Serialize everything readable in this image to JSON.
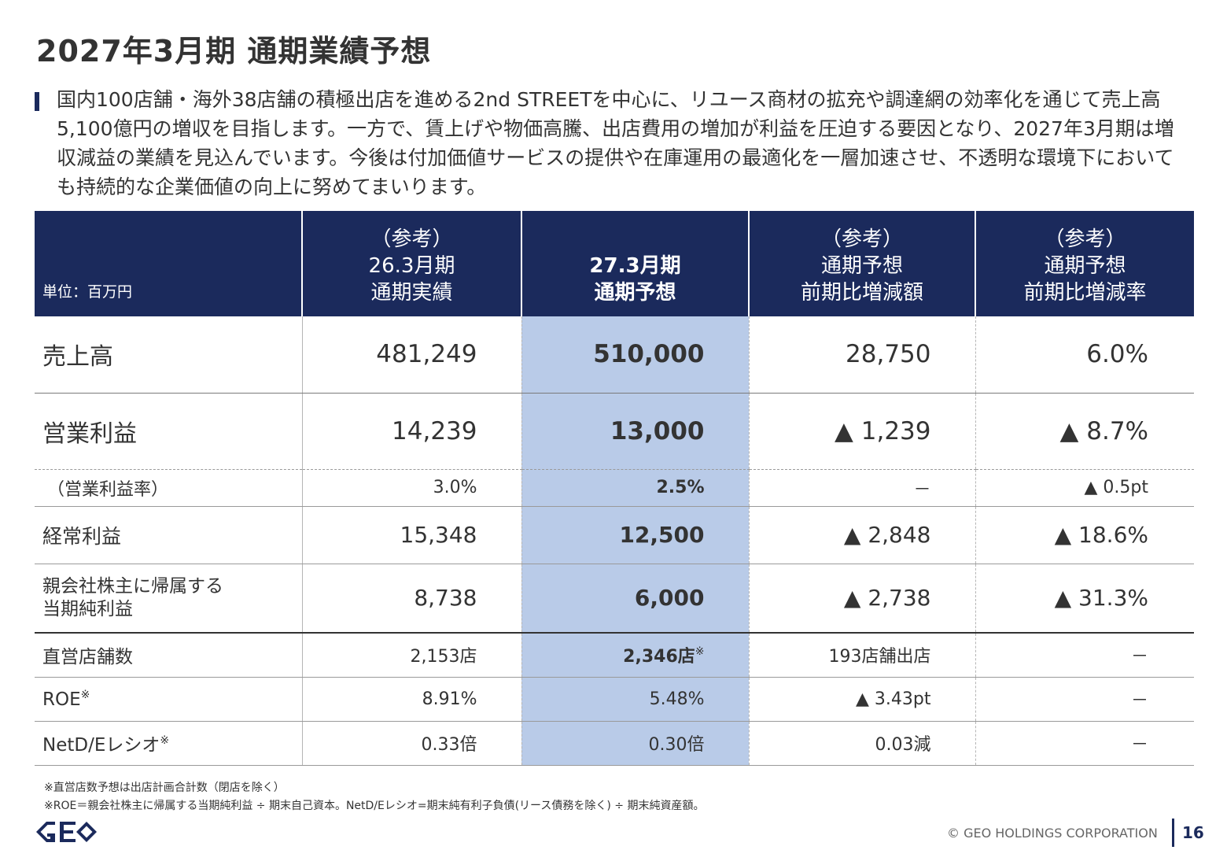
{
  "title": "2027年3月期 通期業績予想",
  "lead": "国内100店舗・海外38店舗の積極出店を進める2nd STREETを中心に、リユース商材の拡充や調達網の効率化を通じて売上高5,100億円の増収を目指します。一方で、賃上げや物価高騰、出店費用の増加が利益を圧迫する要因となり、2027年3月期は増収減益の業績を見込んでいます。今後は付加価値サービスの提供や在庫運用の最適化を一層加速させ、不透明な環境下においても持続的な企業価値の向上に努めてまいります。",
  "table": {
    "unit": "単位：百万円",
    "headers": [
      [
        "（参考）",
        "26.3月期",
        "通期実績"
      ],
      [
        "27.3月期",
        "通期予想"
      ],
      [
        "（参考）",
        "通期予想",
        "前期比増減額"
      ],
      [
        "（参考）",
        "通期予想",
        "前期比増減率"
      ]
    ],
    "rows": [
      {
        "label": "売上高",
        "v1": "481,249",
        "v2": "510,000",
        "v3": "28,750",
        "v4": "6.0%"
      },
      {
        "label": "営業利益",
        "v1": "14,239",
        "v2": "13,000",
        "v3": "▲ 1,239",
        "v4": "▲ 8.7%"
      },
      {
        "label": "（営業利益率）",
        "v1": "3.0%",
        "v2": "2.5%",
        "v3": "－",
        "v4": "▲ 0.5pt"
      },
      {
        "label": "経常利益",
        "v1": "15,348",
        "v2": "12,500",
        "v3": "▲ 2,848",
        "v4": "▲ 18.6%"
      },
      {
        "label_line1": "親会社株主に帰属する",
        "label_line2": "当期純利益",
        "v1": "8,738",
        "v2": "6,000",
        "v3": "▲ 2,738",
        "v4": "▲ 31.3%"
      },
      {
        "label": "直営店舗数",
        "v1": "2,153店",
        "v2": "2,346店",
        "v2_note": "※",
        "v3": "193店舗出店",
        "v4": "－"
      },
      {
        "label": "ROE",
        "label_note": "※",
        "v1": "8.91%",
        "v2": "5.48%",
        "v3": "▲ 3.43pt",
        "v4": "－"
      },
      {
        "label": "NetD/Eレシオ",
        "label_note": "※",
        "v1": "0.33倍",
        "v2": "0.30倍",
        "v3": "0.03減",
        "v4": "－"
      }
    ]
  },
  "footnotes": [
    "※直営店数予想は出店計画合計数（閉店を除く）",
    "※ROE＝親会社株主に帰属する当期純利益 ÷ 期末自己資本。NetD/Eレシオ=期末純有利子負債(リース債務を除く) ÷ 期末純資産額。"
  ],
  "footer": {
    "logo_icon": "geo-logo",
    "copyright": "© GEO HOLDINGS CORPORATION",
    "page": "16"
  },
  "colors": {
    "navy": "#1b2a5c",
    "highlight": "#b9cbe8"
  }
}
